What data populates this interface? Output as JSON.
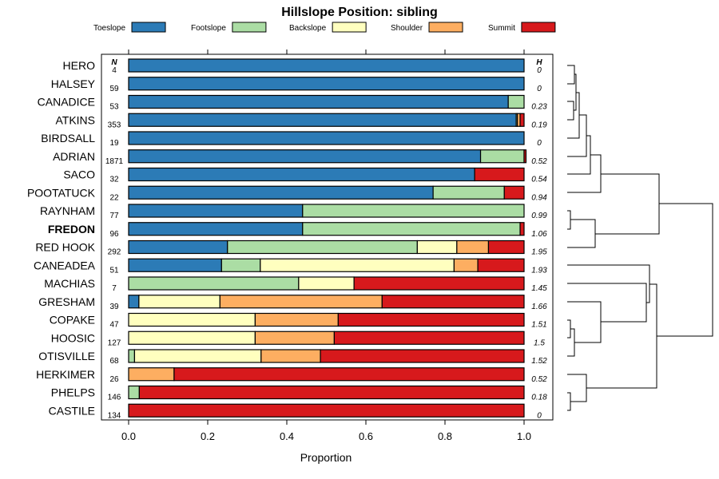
{
  "chart_data": {
    "type": "bar",
    "orientation": "horizontal",
    "stacked": true,
    "title": "Hillslope Position: sibling",
    "xlabel": "Proportion",
    "xlim": [
      0,
      1
    ],
    "xticks": [
      "0.0",
      "0.2",
      "0.4",
      "0.6",
      "0.8",
      "1.0"
    ],
    "n_header": "N",
    "h_header": "H",
    "legend": [
      {
        "name": "Toeslope",
        "color": "#2c7bb6"
      },
      {
        "name": "Footslope",
        "color": "#abdda4"
      },
      {
        "name": "Backslope",
        "color": "#ffffbf"
      },
      {
        "name": "Shoulder",
        "color": "#fdae61"
      },
      {
        "name": "Summit",
        "color": "#d7191c"
      }
    ],
    "highlight": "FREDON",
    "rows": [
      {
        "name": "HERO",
        "n": "4",
        "h": "0",
        "values": [
          1.0,
          0,
          0,
          0,
          0
        ]
      },
      {
        "name": "HALSEY",
        "n": "59",
        "h": "0",
        "values": [
          1.0,
          0,
          0,
          0,
          0
        ]
      },
      {
        "name": "CANADICE",
        "n": "53",
        "h": "0.23",
        "values": [
          0.96,
          0.04,
          0,
          0,
          0
        ]
      },
      {
        "name": "ATKINS",
        "n": "353",
        "h": "0.19",
        "values": [
          0.98,
          0.003,
          0,
          0.007,
          0.01
        ]
      },
      {
        "name": "BIRDSALL",
        "n": "19",
        "h": "0",
        "values": [
          1.0,
          0,
          0,
          0,
          0
        ]
      },
      {
        "name": "ADRIAN",
        "n": "1871",
        "h": "0.52",
        "values": [
          0.89,
          0.11,
          0,
          0,
          0.005
        ]
      },
      {
        "name": "SACO",
        "n": "32",
        "h": "0.54",
        "values": [
          0.875,
          0,
          0,
          0,
          0.125
        ]
      },
      {
        "name": "POOTATUCK",
        "n": "22",
        "h": "0.94",
        "values": [
          0.77,
          0.18,
          0,
          0,
          0.05
        ]
      },
      {
        "name": "RAYNHAM",
        "n": "77",
        "h": "0.99",
        "values": [
          0.44,
          0.56,
          0,
          0,
          0
        ]
      },
      {
        "name": "FREDON",
        "n": "96",
        "h": "1.06",
        "values": [
          0.44,
          0.55,
          0,
          0,
          0.01
        ]
      },
      {
        "name": "RED HOOK",
        "n": "292",
        "h": "1.95",
        "values": [
          0.25,
          0.48,
          0.1,
          0.08,
          0.09
        ]
      },
      {
        "name": "CANEADEA",
        "n": "51",
        "h": "1.93",
        "values": [
          0.235,
          0.098,
          0.49,
          0.06,
          0.117
        ]
      },
      {
        "name": "MACHIAS",
        "n": "7",
        "h": "1.45",
        "values": [
          0,
          0.43,
          0.14,
          0,
          0.43
        ]
      },
      {
        "name": "GRESHAM",
        "n": "39",
        "h": "1.66",
        "values": [
          0.026,
          0,
          0.205,
          0.41,
          0.359
        ]
      },
      {
        "name": "COPAKE",
        "n": "47",
        "h": "1.51",
        "values": [
          0,
          0,
          0.32,
          0.21,
          0.47
        ]
      },
      {
        "name": "HOOSIC",
        "n": "127",
        "h": "1.5",
        "values": [
          0,
          0,
          0.32,
          0.2,
          0.48
        ]
      },
      {
        "name": "OTISVILLE",
        "n": "68",
        "h": "1.52",
        "values": [
          0,
          0.015,
          0.32,
          0.15,
          0.515
        ]
      },
      {
        "name": "HERKIMER",
        "n": "26",
        "h": "0.52",
        "values": [
          0,
          0,
          0,
          0.115,
          0.885
        ]
      },
      {
        "name": "PHELPS",
        "n": "146",
        "h": "0.18",
        "values": [
          0,
          0.027,
          0,
          0,
          0.973
        ]
      },
      {
        "name": "CASTILE",
        "n": "134",
        "h": "0",
        "values": [
          0,
          0,
          0,
          0,
          1.0
        ]
      }
    ]
  }
}
